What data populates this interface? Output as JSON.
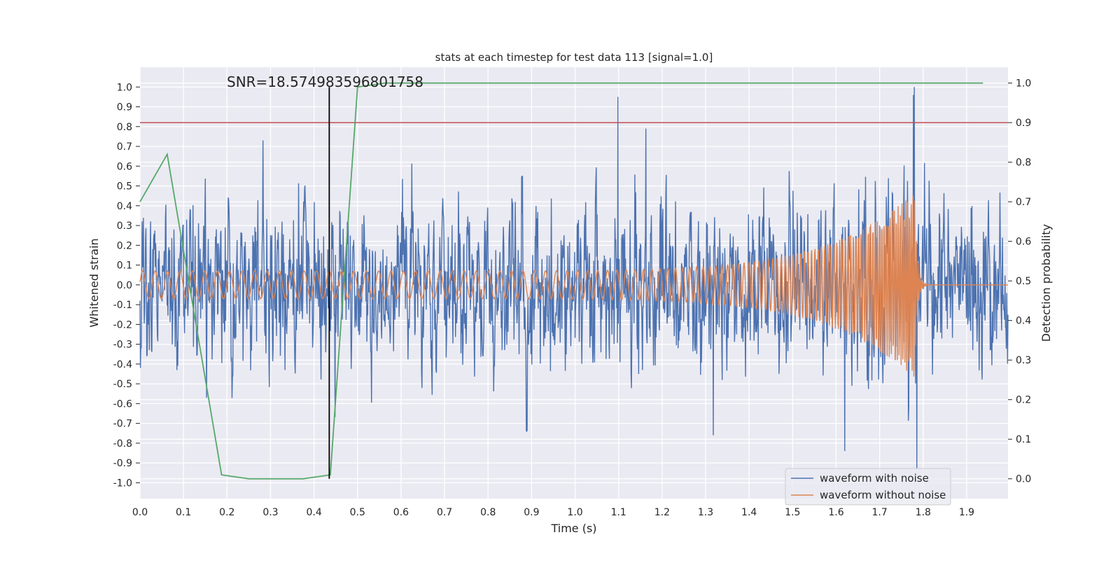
{
  "chart_data": {
    "type": "line",
    "title": "stats at each timestep for test data 113 [signal=1.0]",
    "xlabel": "Time (s)",
    "ylabel": "Whitened strain",
    "y2label": "Detection probability",
    "annotation": "SNR=18.574983596801758",
    "xlim": [
      0.0,
      1.995
    ],
    "ylim": [
      -1.08,
      1.1
    ],
    "y2lim": [
      -0.05,
      1.04
    ],
    "xticks": [
      "0.0",
      "0.1",
      "0.2",
      "0.3",
      "0.4",
      "0.5",
      "0.6",
      "0.7",
      "0.8",
      "0.9",
      "1.0",
      "1.1",
      "1.2",
      "1.3",
      "1.4",
      "1.5",
      "1.6",
      "1.7",
      "1.8",
      "1.9"
    ],
    "yticks": [
      "1.0",
      "0.9",
      "0.8",
      "0.7",
      "0.6",
      "0.5",
      "0.4",
      "0.3",
      "0.2",
      "0.1",
      "0.0",
      "-0.1",
      "-0.2",
      "-0.3",
      "-0.4",
      "-0.5",
      "-0.6",
      "-0.7",
      "-0.8",
      "-0.9",
      "-1.0"
    ],
    "y2ticks": [
      "1.0",
      "0.9",
      "0.8",
      "0.7",
      "0.6",
      "0.5",
      "0.4",
      "0.3",
      "0.2",
      "0.1",
      "0.0"
    ],
    "grid": true,
    "legend_position": "bottom-right",
    "series": [
      {
        "name": "waveform with noise",
        "color": "#4c72b0",
        "axis": "left",
        "description": "noisy whitened strain, roughly ±0.6 amplitude with spikes to 0.95 near t=1.1 and 1.0 near t=1.78"
      },
      {
        "name": "waveform without noise",
        "color": "#dd8452",
        "axis": "left",
        "chirp": {
          "start_amplitude": 0.07,
          "peak_amplitude": 0.47,
          "merger_time": 1.78,
          "start_frequency_hz": 35,
          "end_frequency_hz": 250
        }
      },
      {
        "color": "#55a868",
        "axis": "right",
        "x": [
          0.0,
          0.0625,
          0.1875,
          0.25,
          0.375,
          0.4375,
          0.5,
          0.5625,
          0.625,
          1.9375
        ],
        "y": [
          0.7,
          0.82,
          0.01,
          0.0,
          0.0,
          0.01,
          0.99,
          1.0,
          1.0,
          1.0
        ]
      }
    ],
    "threshold_line": {
      "y2": 0.9,
      "color": "#c44e52"
    },
    "vertical_marker": {
      "x": 0.435,
      "y_from": -0.98,
      "y_to": 1.0,
      "color": "#000000"
    }
  }
}
